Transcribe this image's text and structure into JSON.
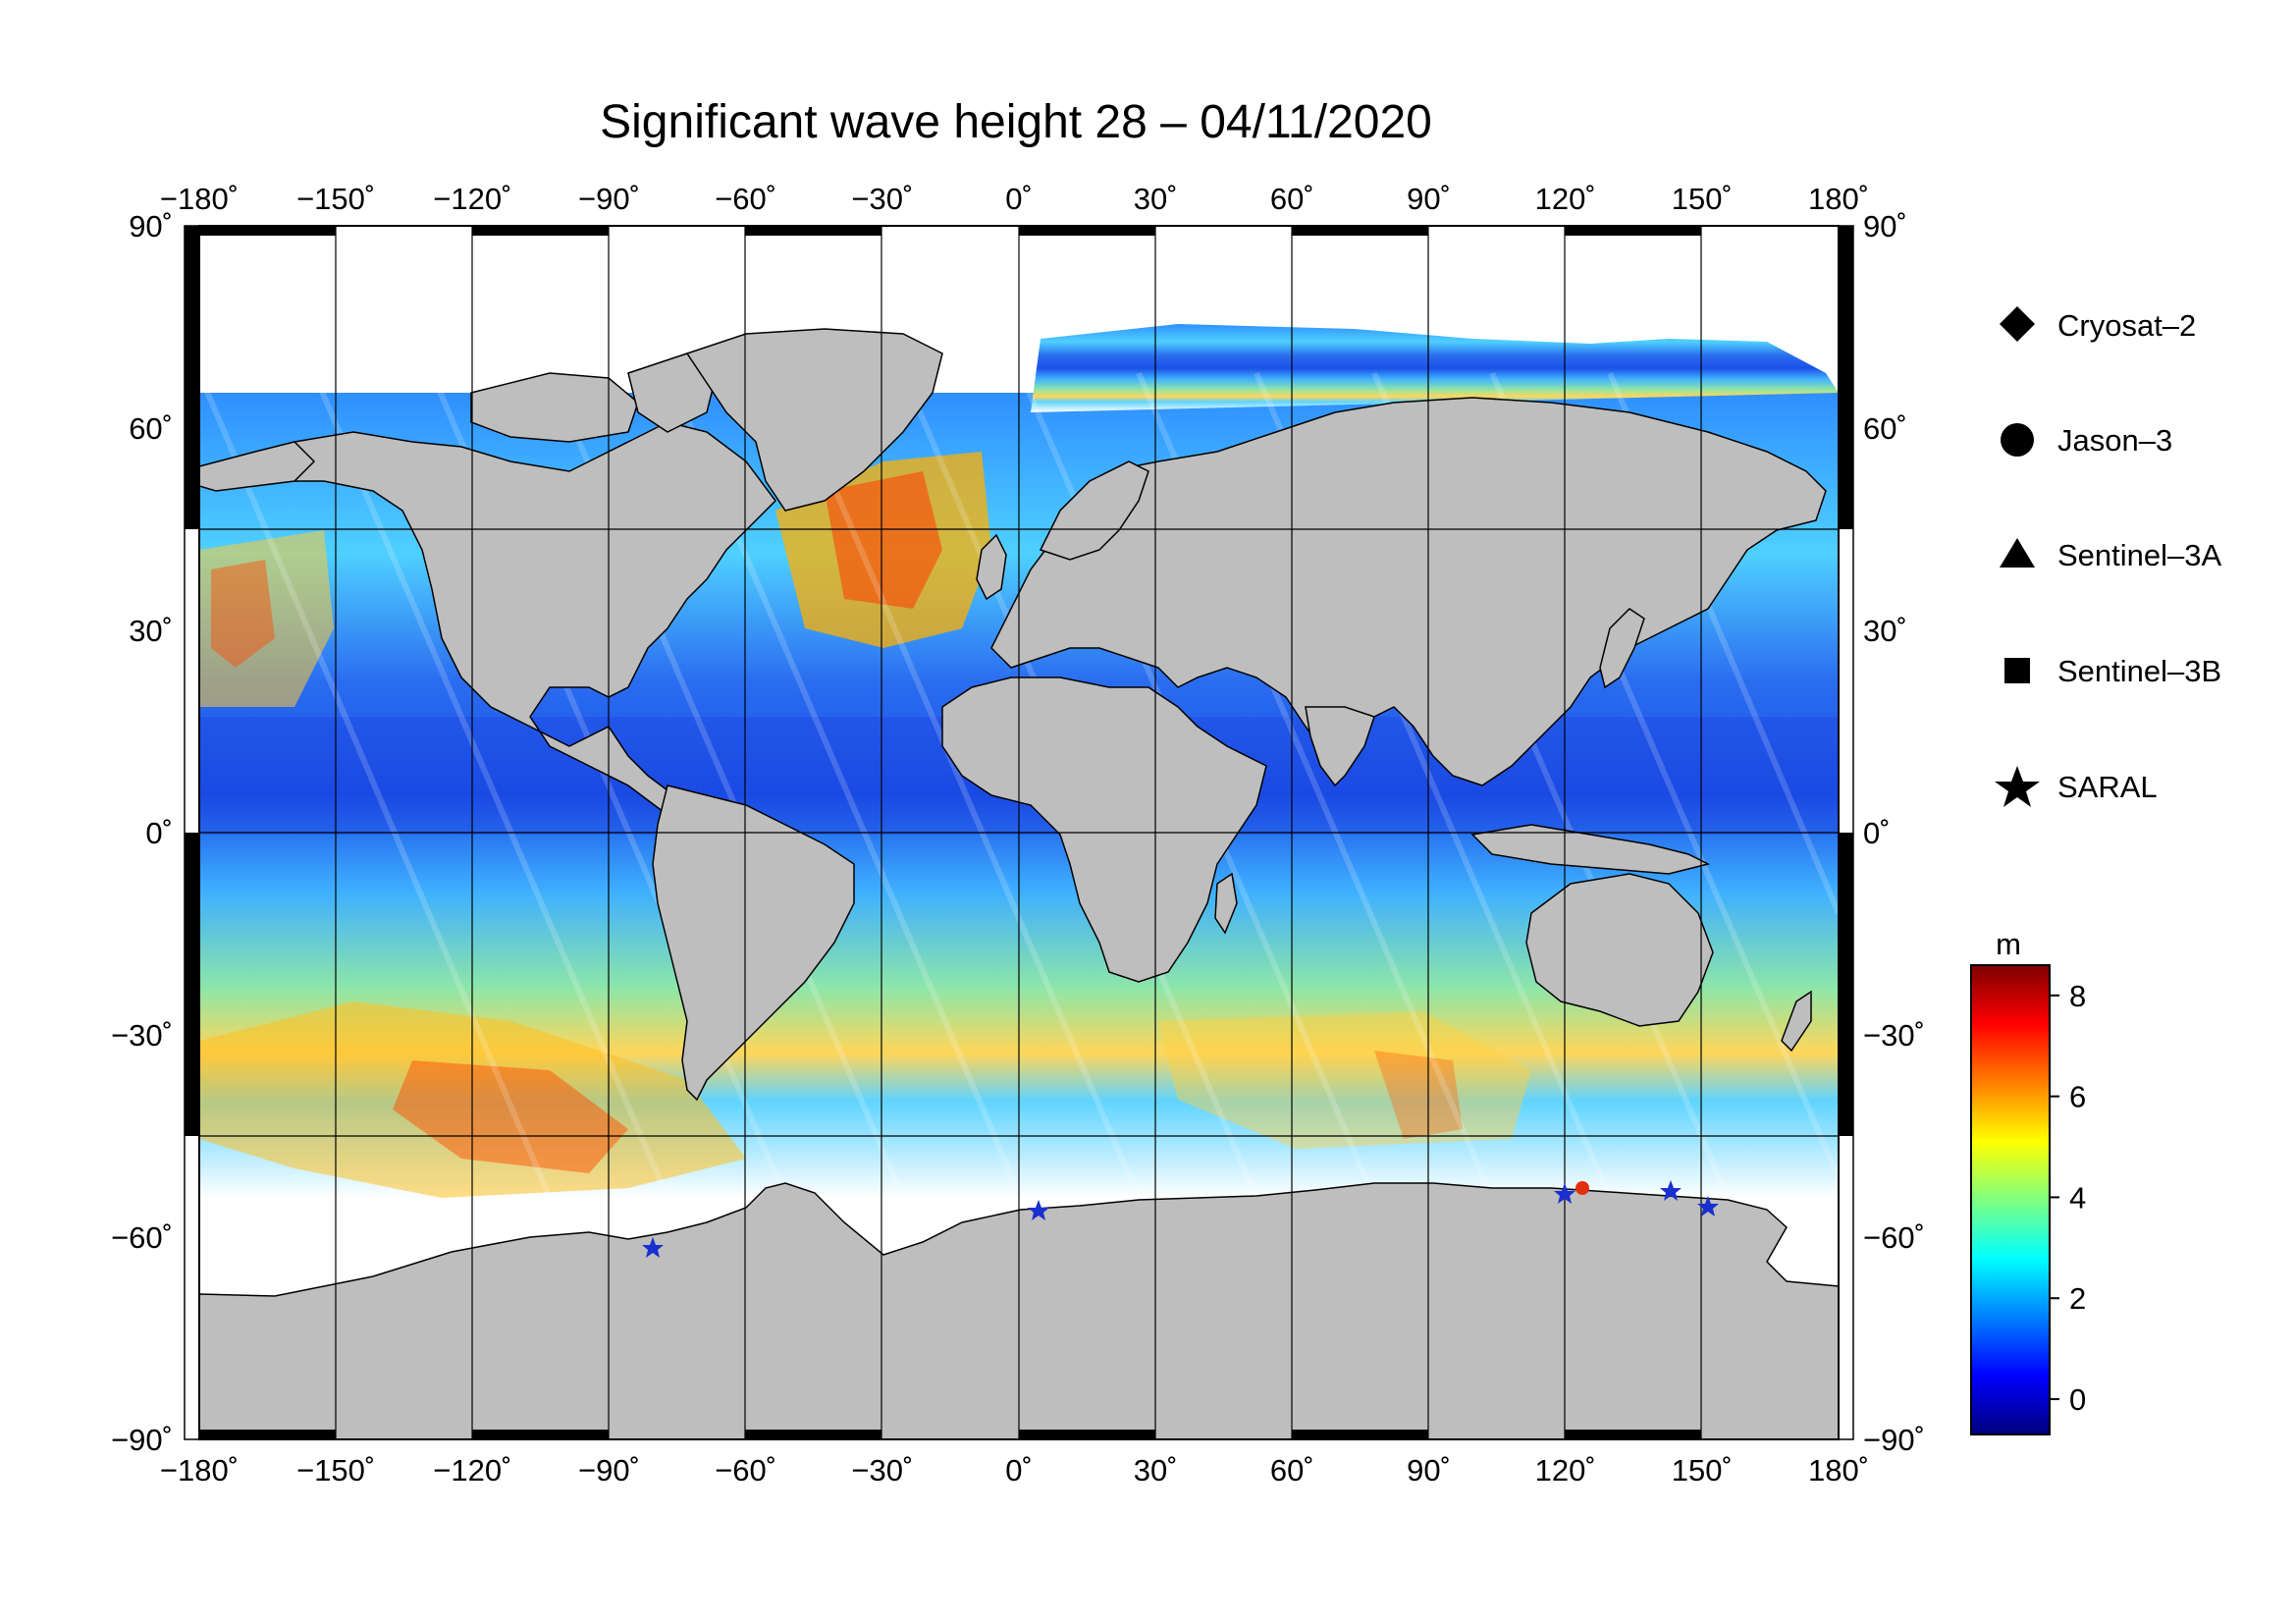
{
  "title": "Significant wave height 28 – 04/11/2020",
  "axes": {
    "lon_ticks": [
      {
        "value": -180,
        "label": "−180˚"
      },
      {
        "value": -150,
        "label": "−150˚"
      },
      {
        "value": -120,
        "label": "−120˚"
      },
      {
        "value": -90,
        "label": "−90˚"
      },
      {
        "value": -60,
        "label": "−60˚"
      },
      {
        "value": -30,
        "label": "−30˚"
      },
      {
        "value": 0,
        "label": "0˚"
      },
      {
        "value": 30,
        "label": "30˚"
      },
      {
        "value": 60,
        "label": "60˚"
      },
      {
        "value": 90,
        "label": "90˚"
      },
      {
        "value": 120,
        "label": "120˚"
      },
      {
        "value": 150,
        "label": "150˚"
      },
      {
        "value": 180,
        "label": "180˚"
      }
    ],
    "lat_ticks": [
      {
        "value": 90,
        "label": "90˚"
      },
      {
        "value": 60,
        "label": "60˚"
      },
      {
        "value": 30,
        "label": "30˚"
      },
      {
        "value": 0,
        "label": "0˚"
      },
      {
        "value": -30,
        "label": "−30˚"
      },
      {
        "value": -60,
        "label": "−60˚"
      },
      {
        "value": -90,
        "label": "−90˚"
      }
    ],
    "lon_range": [
      -180,
      180
    ],
    "lat_range": [
      -90,
      90
    ],
    "grid": true
  },
  "legend": {
    "placement": "right",
    "items": [
      {
        "label": "Cryosat–2",
        "symbol": "diamond-icon"
      },
      {
        "label": "Jason–3",
        "symbol": "circle-icon"
      },
      {
        "label": "Sentinel–3A",
        "symbol": "triangle-icon"
      },
      {
        "label": "Sentinel–3B",
        "symbol": "square-icon"
      },
      {
        "label": "SARAL",
        "symbol": "star-icon"
      }
    ]
  },
  "colorbar": {
    "unit": "m",
    "range": [
      -0.7,
      8.6
    ],
    "ticks": [
      {
        "value": 0,
        "label": "0"
      },
      {
        "value": 2,
        "label": "2"
      },
      {
        "value": 4,
        "label": "4"
      },
      {
        "value": 6,
        "label": "6"
      },
      {
        "value": 8,
        "label": "8"
      }
    ],
    "colors": [
      "#00007f",
      "#0000ff",
      "#007fff",
      "#00ffff",
      "#7fff7f",
      "#ffff00",
      "#ff7f00",
      "#ff0000",
      "#7f0000"
    ]
  },
  "colors": {
    "land": "#bebebe",
    "ice": "#ffffff",
    "background": "#ffffff"
  }
}
